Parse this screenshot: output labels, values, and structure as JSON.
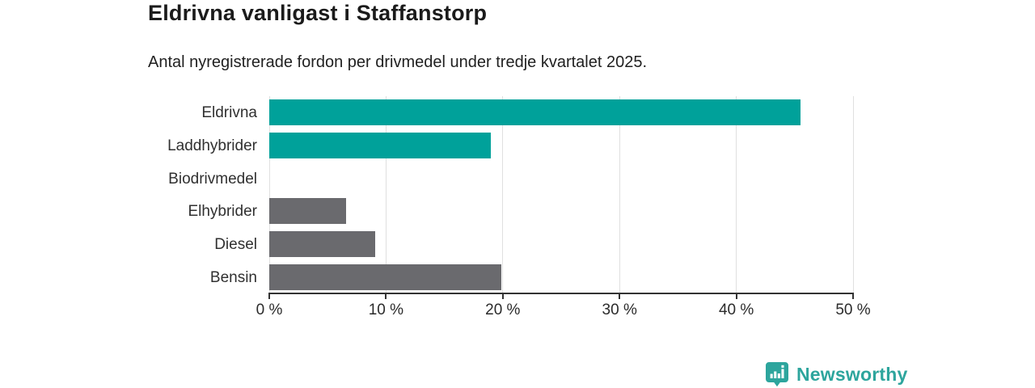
{
  "header": {
    "title": "Eldrivna vanligast i Staffanstorp",
    "subtitle": "Antal nyregistrerade fordon per drivmedel under tredje kvartalet 2025."
  },
  "chart_data": {
    "type": "bar",
    "orientation": "horizontal",
    "title": "Eldrivna vanligast i Staffanstorp",
    "subtitle": "Antal nyregistrerade fordon per drivmedel under tredje kvartalet 2025.",
    "categories": [
      "Eldrivna",
      "Laddhybrider",
      "Biodrivmedel",
      "Elhybrider",
      "Diesel",
      "Bensin"
    ],
    "values": [
      45.5,
      19.0,
      0,
      6.6,
      9.1,
      19.9
    ],
    "unit": "%",
    "xlabel": "",
    "ylabel": "",
    "xlim": [
      0,
      50
    ],
    "x_ticks": [
      0,
      10,
      20,
      30,
      40,
      50
    ],
    "x_tick_labels": [
      "0 %",
      "10 %",
      "20 %",
      "30 %",
      "40 %",
      "50 %"
    ],
    "grid": "vertical",
    "legend": "none",
    "colors": {
      "highlight": "#00a19a",
      "default": "#6a6a6e",
      "gridline": "#e0e0e0",
      "axis": "#333333"
    },
    "bar_colors": [
      "#00a19a",
      "#00a19a",
      "#6a6a6e",
      "#6a6a6e",
      "#6a6a6e",
      "#6a6a6e"
    ]
  },
  "footer": {
    "brand_name": "Newsworthy",
    "brand_color": "#2da59d",
    "logo_icon": "newsworthy-bar-chart-badge-icon"
  }
}
